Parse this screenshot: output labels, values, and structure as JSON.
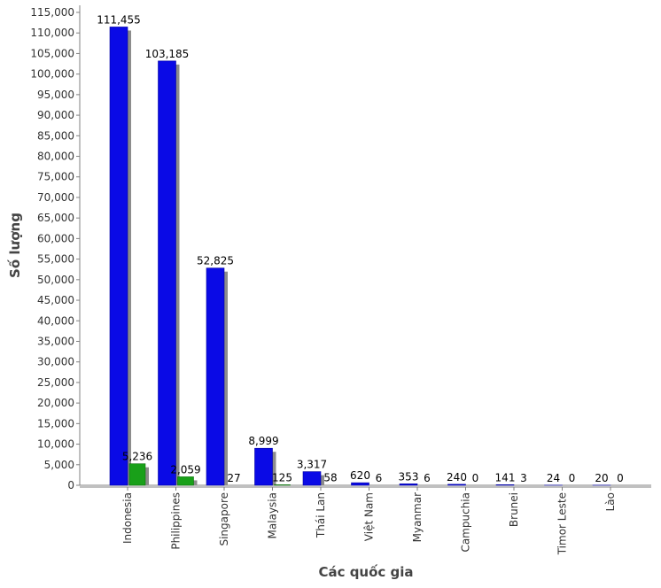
{
  "chart_data": {
    "type": "bar",
    "title": "",
    "xlabel": "Các quốc gia",
    "ylabel": "Số lượng",
    "ylim": [
      0,
      115000
    ],
    "ytick_step": 5000,
    "grid": false,
    "categories": [
      "Indonesia",
      "Philippines",
      "Singapore",
      "Malaysia",
      "Thái Lan",
      "Việt Nam",
      "Myanmar",
      "Campuchia",
      "Brunei",
      "Timor Leste",
      "Lào"
    ],
    "series": [
      {
        "values": [
          111455,
          103185,
          52825,
          8999,
          3317,
          620,
          353,
          240,
          141,
          24,
          20
        ],
        "color": "#0a0ae6"
      },
      {
        "values": [
          5236,
          2059,
          27,
          125,
          58,
          6,
          6,
          0,
          3,
          0,
          0
        ],
        "color": "#19a019"
      }
    ]
  }
}
